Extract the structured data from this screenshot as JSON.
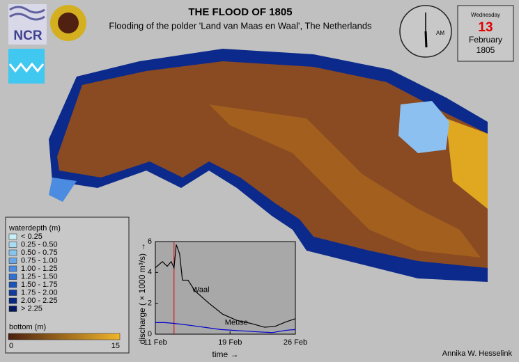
{
  "header": {
    "title": "THE FLOOD OF 1805",
    "subtitle": "Flooding of the polder 'Land van Maas en Waal', The Netherlands",
    "logo": "NCR"
  },
  "clock": {
    "period": "AM"
  },
  "date": {
    "weekday": "Wednesday",
    "day": "13",
    "month": "February",
    "year": "1805"
  },
  "legend": {
    "title": "waterdepth (m)",
    "items": [
      {
        "label": "< 0.25",
        "color": "#c8f0f8"
      },
      {
        "label": "0.25 - 0.50",
        "color": "#a8dcf4"
      },
      {
        "label": "0.50 - 0.75",
        "color": "#88c4f0"
      },
      {
        "label": "0.75 - 1.00",
        "color": "#68a8e8"
      },
      {
        "label": "1.00 - 1.25",
        "color": "#4c8ce0"
      },
      {
        "label": "1.25 - 1.50",
        "color": "#3070d0"
      },
      {
        "label": "1.50 - 1.75",
        "color": "#1c54b8"
      },
      {
        "label": "1.75 - 2.00",
        "color": "#103c9c"
      },
      {
        "label": "2.00 - 2.25",
        "color": "#082880"
      },
      {
        "label": "> 2.25",
        "color": "#041860"
      }
    ]
  },
  "colorbar": {
    "title": "bottom (m)",
    "min": 0,
    "max": 15,
    "colors": [
      "#4a2010",
      "#f0b428"
    ]
  },
  "chart_data": {
    "type": "line",
    "xlabel": "time →",
    "ylabel": "discharge ( × 1000 m³/s) →",
    "xlim": [
      11,
      26
    ],
    "xticks": [
      {
        "value": 11,
        "label": "11 Feb"
      },
      {
        "value": 19,
        "label": "19 Feb"
      },
      {
        "value": 26,
        "label": "26 Feb"
      }
    ],
    "ylim": [
      0,
      6
    ],
    "yticks": [
      0,
      2,
      4,
      6
    ],
    "marker_x": 13,
    "marker_color": "#e00000",
    "series": [
      {
        "name": "Waal",
        "color": "#000000",
        "x": [
          11,
          11.75,
          12.27,
          12.7,
          13.0,
          13.24,
          13.6,
          13.9,
          14.5,
          15.25,
          16.75,
          18.2,
          19.7,
          21.2,
          22.7,
          23.8,
          25.0,
          26
        ],
        "values": [
          4.3,
          4.7,
          4.4,
          4.7,
          4.3,
          5.8,
          5.2,
          3.5,
          3.5,
          2.8,
          2.0,
          1.3,
          0.9,
          0.7,
          0.45,
          0.5,
          0.8,
          1.0
        ]
      },
      {
        "name": "Meuse",
        "color": "#0000d0",
        "x": [
          11,
          12,
          13,
          15,
          18,
          22,
          23.5,
          25,
          26
        ],
        "values": [
          0.75,
          0.75,
          0.7,
          0.55,
          0.3,
          0.15,
          0.1,
          0.25,
          0.3
        ]
      }
    ]
  },
  "credit": "Annika W. Hesselink"
}
